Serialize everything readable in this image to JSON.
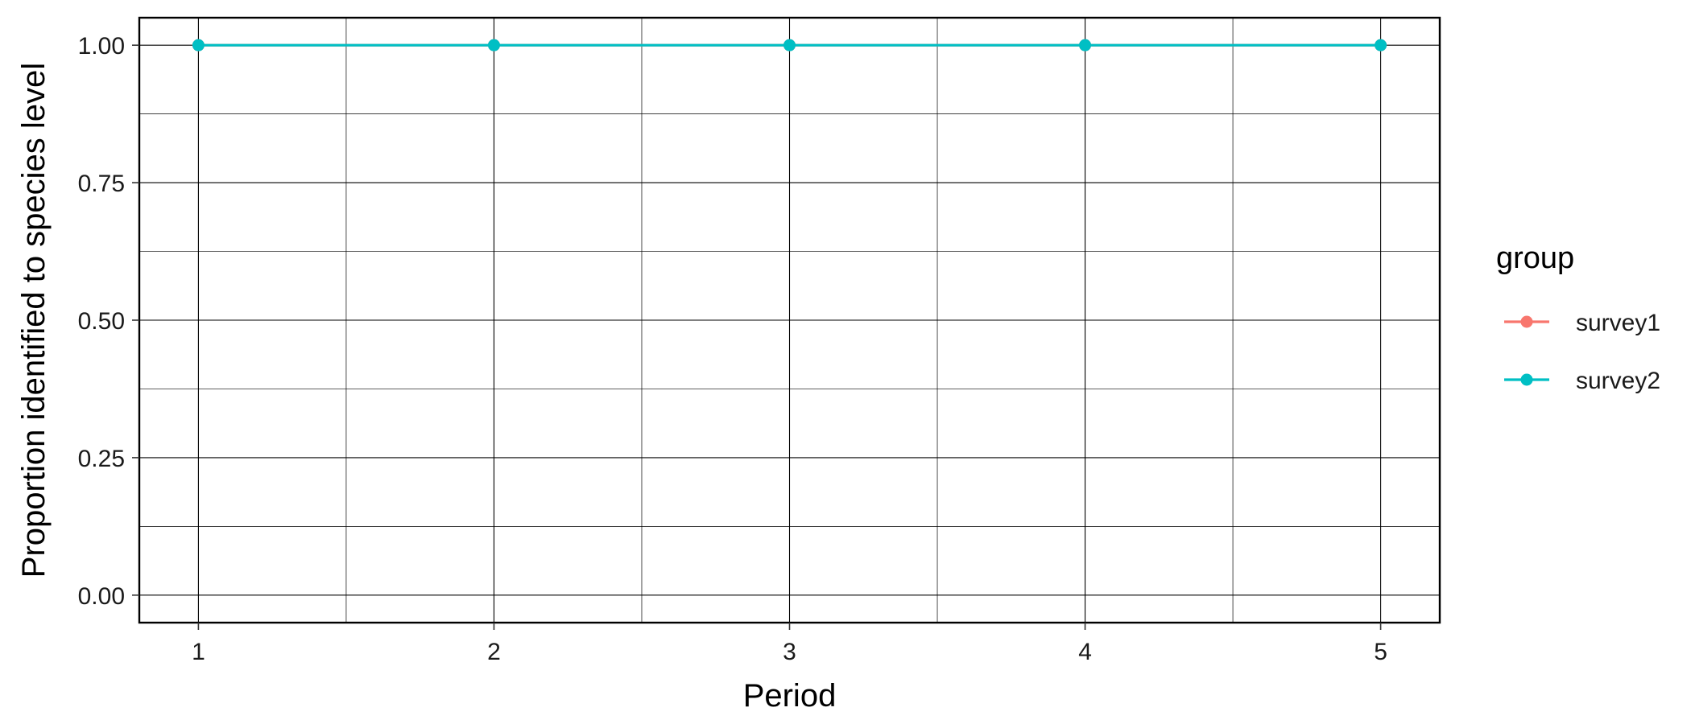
{
  "chart_data": {
    "type": "line",
    "xlabel": "Period",
    "ylabel": "Proportion identified to species level",
    "x": [
      1,
      2,
      3,
      4,
      5
    ],
    "xlim": [
      0.8,
      5.2
    ],
    "ylim": [
      -0.05,
      1.05
    ],
    "x_ticks": [
      "1",
      "2",
      "3",
      "4",
      "5"
    ],
    "y_ticks": [
      "0.00",
      "0.25",
      "0.50",
      "0.75",
      "1.00"
    ],
    "grid": true,
    "legend": {
      "title": "group",
      "position": "right"
    },
    "series": [
      {
        "name": "survey1",
        "color": "#F8766D",
        "values": [
          1.0,
          1.0,
          1.0,
          1.0,
          1.0
        ]
      },
      {
        "name": "survey2",
        "color": "#00BFC4",
        "values": [
          1.0,
          1.0,
          1.0,
          1.0,
          1.0
        ]
      }
    ]
  }
}
